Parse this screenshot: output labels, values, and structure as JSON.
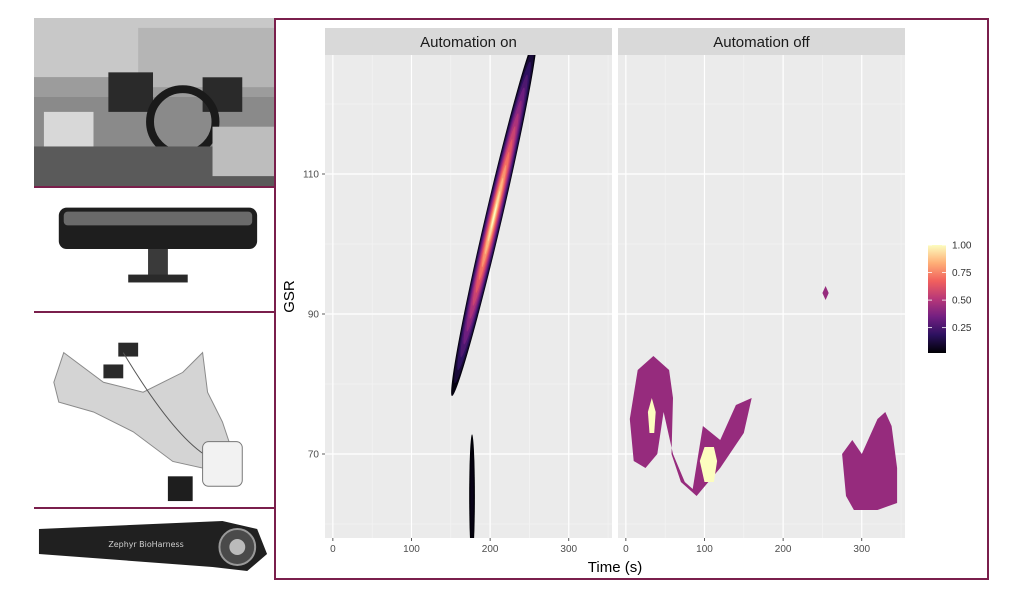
{
  "figure": {
    "frame_color": "#7a1f4c",
    "photos": [
      {
        "subject": "driving-simulator-cockpit"
      },
      {
        "subject": "rear-view-mirror-camera"
      },
      {
        "subject": "hand-with-gsr-sensor"
      },
      {
        "subject": "chest-strap-sensor",
        "text": "Zephyr BioHarness"
      }
    ]
  },
  "chart_data": {
    "type": "heatmap",
    "subtype": "2d-density-contour",
    "facets": [
      {
        "label": "Automation on",
        "blobs": [
          {
            "center": [
              205,
              104
            ],
            "major_sd": 12,
            "minor_sd": 9,
            "peak": 1.0,
            "tilt_toward": [
              230,
              116
            ]
          },
          {
            "center": [
              177,
              64
            ],
            "major_sd": 4,
            "minor_sd": 3,
            "peak": 0.05
          }
        ]
      },
      {
        "label": "Automation off",
        "regions": [
          {
            "level": 0.5,
            "polygon": [
              [
                10,
                69
              ],
              [
                5,
                75
              ],
              [
                15,
                82
              ],
              [
                35,
                84
              ],
              [
                55,
                82
              ],
              [
                60,
                78
              ],
              [
                58,
                70
              ],
              [
                70,
                66
              ],
              [
                90,
                64
              ],
              [
                120,
                68
              ],
              [
                150,
                73
              ],
              [
                160,
                78
              ],
              [
                140,
                77
              ],
              [
                120,
                72
              ],
              [
                98,
                74
              ],
              [
                85,
                65
              ],
              [
                75,
                66
              ],
              [
                60,
                70
              ],
              [
                48,
                76
              ],
              [
                40,
                70
              ],
              [
                25,
                68
              ]
            ]
          },
          {
            "level": 1.0,
            "polygon": [
              [
                28,
                76
              ],
              [
                33,
                78
              ],
              [
                38,
                76
              ],
              [
                36,
                73
              ],
              [
                30,
                73
              ]
            ]
          },
          {
            "level": 1.0,
            "polygon": [
              [
                94,
                69
              ],
              [
                100,
                71
              ],
              [
                112,
                71
              ],
              [
                116,
                69
              ],
              [
                112,
                66
              ],
              [
                100,
                66
              ]
            ]
          },
          {
            "level": 0.5,
            "polygon": [
              [
                250,
                93
              ],
              [
                254,
                94
              ],
              [
                258,
                93
              ],
              [
                254,
                92
              ]
            ]
          },
          {
            "level": 0.5,
            "polygon": [
              [
                275,
                70
              ],
              [
                280,
                64
              ],
              [
                290,
                62
              ],
              [
                320,
                62
              ],
              [
                345,
                63
              ],
              [
                345,
                68
              ],
              [
                338,
                74
              ],
              [
                330,
                76
              ],
              [
                320,
                75
              ],
              [
                300,
                70
              ],
              [
                288,
                72
              ]
            ]
          }
        ]
      }
    ],
    "xlabel": "Time (s)",
    "ylabel": "GSR",
    "x_ticks": [
      0,
      100,
      200,
      300
    ],
    "y_ticks": [
      70,
      90,
      110
    ],
    "xlim": [
      -10,
      355
    ],
    "ylim": [
      58,
      127
    ],
    "legend": {
      "ticks": [
        0.25,
        0.5,
        0.75,
        1.0
      ],
      "tick_labels": [
        "0.25",
        "0.50",
        "0.75",
        "1.00"
      ],
      "placement": "right",
      "colors": [
        "#000004",
        "#2c115f",
        "#721f81",
        "#b73779",
        "#f1605d",
        "#feaf77",
        "#fcfdbf"
      ]
    },
    "panel_bg": "#ebebeb",
    "strip_bg": "#d9d9d9",
    "grid": true
  }
}
